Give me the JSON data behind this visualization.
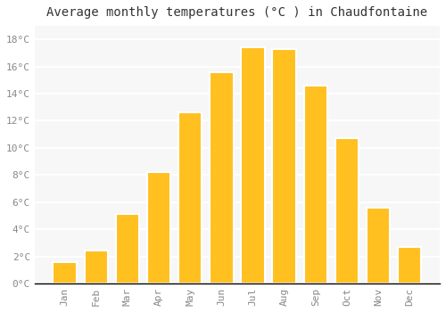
{
  "title": "Average monthly temperatures (°C ) in Chaudfontaine",
  "months": [
    "Jan",
    "Feb",
    "Mar",
    "Apr",
    "May",
    "Jun",
    "Jul",
    "Aug",
    "Sep",
    "Oct",
    "Nov",
    "Dec"
  ],
  "values": [
    1.6,
    2.4,
    5.1,
    8.2,
    12.6,
    15.6,
    17.4,
    17.3,
    14.6,
    10.7,
    5.6,
    2.7
  ],
  "bar_color_top": "#FFC020",
  "bar_color_bottom": "#FFB000",
  "bar_edge_color": "#FFFFFF",
  "background_color": "#FFFFFF",
  "plot_bg_color": "#F7F7F7",
  "grid_color": "#FFFFFF",
  "ylim": [
    0,
    19
  ],
  "yticks": [
    0,
    2,
    4,
    6,
    8,
    10,
    12,
    14,
    16,
    18
  ],
  "ytick_labels": [
    "0°C",
    "2°C",
    "4°C",
    "6°C",
    "8°C",
    "10°C",
    "12°C",
    "14°C",
    "16°C",
    "18°C"
  ],
  "title_fontsize": 10,
  "tick_fontsize": 8,
  "tick_color": "#888888",
  "font_family": "monospace",
  "bar_width": 0.75
}
